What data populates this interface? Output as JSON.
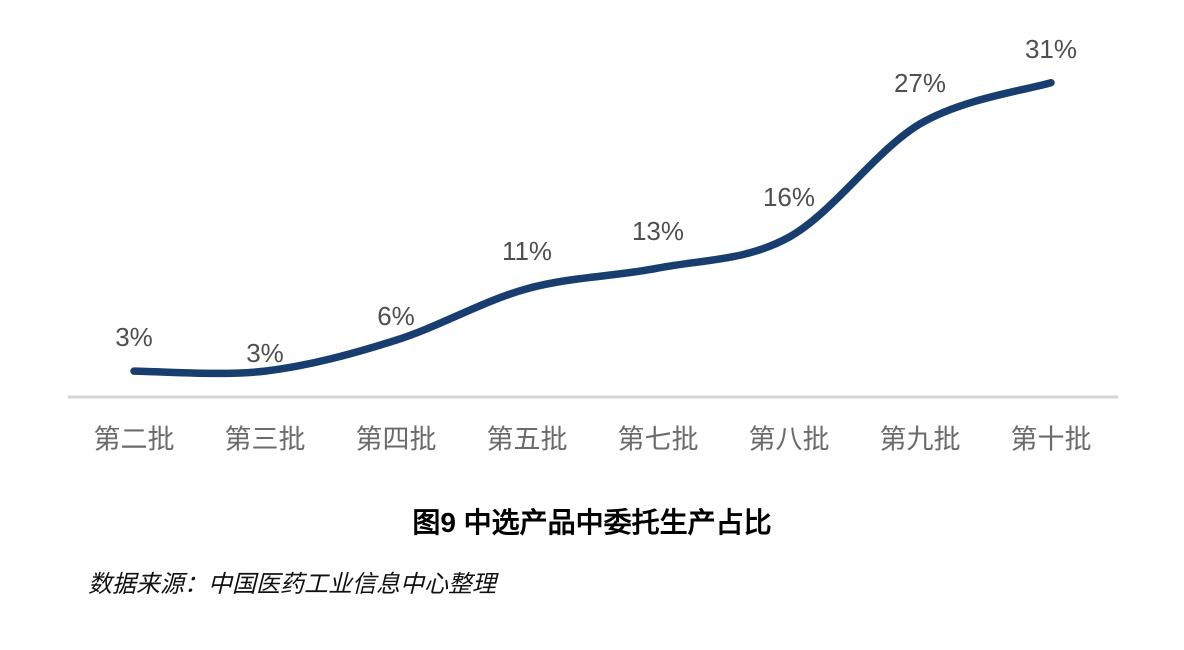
{
  "chart_data": {
    "type": "line",
    "title": "图9 中选产品中委托生产占比",
    "source": "数据来源：中国医药工业信息中心整理",
    "categories": [
      "第二批",
      "第三批",
      "第四批",
      "第五批",
      "第七批",
      "第八批",
      "第九批",
      "第十批"
    ],
    "values": [
      3,
      3,
      6,
      11,
      13,
      16,
      27,
      31
    ],
    "data_labels": [
      "3%",
      "3%",
      "6%",
      "11%",
      "13%",
      "16%",
      "27%",
      "31%"
    ],
    "xlabel": "",
    "ylabel": "",
    "ylim": [
      0,
      35
    ],
    "grid": false,
    "legend": "none",
    "smooth": true,
    "colors": {
      "line": "#183e70",
      "data_label": "#4f4f4f",
      "category_label": "#6b6b6b",
      "axis_line": "#d5d5d5",
      "title": "#000000"
    }
  }
}
